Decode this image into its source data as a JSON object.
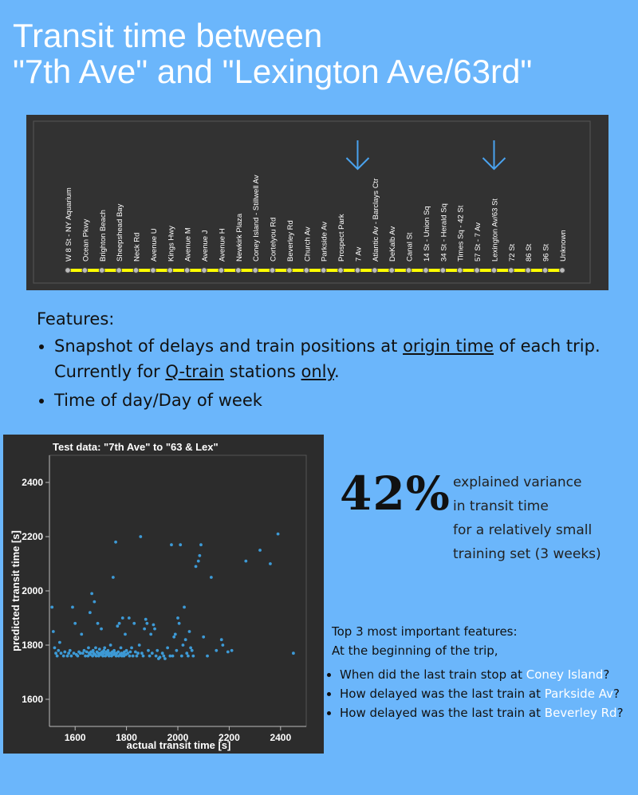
{
  "title": "Transit time between\n\"7th Ave\" and \"Lexington Ave/63rd\"",
  "route": {
    "stations": [
      "W 8 St - NY Aquarium",
      "Ocean Pkwy",
      "Brighton Beach",
      "Sheepshead Bay",
      "Neck Rd",
      "Avenue U",
      "Kings Hwy",
      "Avenue M",
      "Avenue J",
      "Avenue H",
      "Newkirk Plaza",
      "Coney Island - Stillwell Av",
      "Cortelyou Rd",
      "Beverley Rd",
      "Church Av",
      "Parkside Av",
      "Prospect Park",
      "7 Av",
      "Atlantic Av - Barclays Ctr",
      "DeKalb Av",
      "Canal St",
      "14 St - Union Sq",
      "34 St - Herald Sq",
      "Times Sq - 42 St",
      "57 St - 7 Av",
      "Lexington Av/63 St",
      "72 St",
      "86 St",
      "96 St",
      "Unknown"
    ],
    "origin_index": 17,
    "destination_index": 25,
    "line_color": "#ffff00"
  },
  "features": {
    "heading": "Features:",
    "bullet1": {
      "p1": "Snapshot of delays and train positions at ",
      "u1": "origin time",
      "p2": " of each trip. Currently for ",
      "u2": "Q-train",
      "p3": " stations ",
      "u3": "only",
      "p4": "."
    },
    "bullet2": " Time of day/Day of week"
  },
  "chart_data": {
    "type": "scatter",
    "title": "Test data: \"7th Ave\" to \"63 & Lex\"",
    "xlabel": "actual transit time [s]",
    "ylabel": "predicted transit time [s]",
    "xlim": [
      1500,
      2500
    ],
    "ylim": [
      1500,
      2500
    ],
    "xticks": [
      1600,
      1800,
      2000,
      2200,
      2400
    ],
    "yticks": [
      1600,
      1800,
      2000,
      2200,
      2400
    ],
    "point_color": "#3d9ad6",
    "background": "#2c2c2c",
    "points": [
      [
        1510,
        1940
      ],
      [
        1515,
        1850
      ],
      [
        1520,
        1790
      ],
      [
        1525,
        1770
      ],
      [
        1530,
        1760
      ],
      [
        1535,
        1780
      ],
      [
        1540,
        1810
      ],
      [
        1545,
        1770
      ],
      [
        1555,
        1760
      ],
      [
        1560,
        1775
      ],
      [
        1570,
        1760
      ],
      [
        1575,
        1770
      ],
      [
        1580,
        1780
      ],
      [
        1585,
        1760
      ],
      [
        1590,
        1940
      ],
      [
        1595,
        1770
      ],
      [
        1600,
        1880
      ],
      [
        1605,
        1765
      ],
      [
        1610,
        1760
      ],
      [
        1615,
        1775
      ],
      [
        1620,
        1770
      ],
      [
        1625,
        1840
      ],
      [
        1630,
        1770
      ],
      [
        1635,
        1780
      ],
      [
        1640,
        1760
      ],
      [
        1645,
        1775
      ],
      [
        1650,
        1760
      ],
      [
        1652,
        1790
      ],
      [
        1655,
        1770
      ],
      [
        1658,
        1920
      ],
      [
        1660,
        1765
      ],
      [
        1662,
        1775
      ],
      [
        1665,
        1990
      ],
      [
        1668,
        1760
      ],
      [
        1670,
        1780
      ],
      [
        1672,
        1770
      ],
      [
        1675,
        1960
      ],
      [
        1678,
        1765
      ],
      [
        1680,
        1790
      ],
      [
        1682,
        1760
      ],
      [
        1685,
        1775
      ],
      [
        1688,
        1880
      ],
      [
        1690,
        1770
      ],
      [
        1692,
        1760
      ],
      [
        1695,
        1785
      ],
      [
        1698,
        1770
      ],
      [
        1700,
        1765
      ],
      [
        1702,
        1860
      ],
      [
        1705,
        1775
      ],
      [
        1708,
        1760
      ],
      [
        1710,
        1770
      ],
      [
        1712,
        1780
      ],
      [
        1715,
        1790
      ],
      [
        1718,
        1760
      ],
      [
        1720,
        1770
      ],
      [
        1722,
        1775
      ],
      [
        1725,
        1765
      ],
      [
        1728,
        1780
      ],
      [
        1730,
        1770
      ],
      [
        1732,
        1760
      ],
      [
        1735,
        1770
      ],
      [
        1738,
        1800
      ],
      [
        1740,
        1770
      ],
      [
        1742,
        1760
      ],
      [
        1745,
        1775
      ],
      [
        1748,
        2050
      ],
      [
        1750,
        1765
      ],
      [
        1752,
        1780
      ],
      [
        1755,
        1770
      ],
      [
        1758,
        2180
      ],
      [
        1760,
        1760
      ],
      [
        1762,
        1770
      ],
      [
        1765,
        1870
      ],
      [
        1768,
        1775
      ],
      [
        1770,
        1760
      ],
      [
        1772,
        1880
      ],
      [
        1775,
        1765
      ],
      [
        1778,
        1790
      ],
      [
        1780,
        1770
      ],
      [
        1782,
        1760
      ],
      [
        1785,
        1900
      ],
      [
        1788,
        1770
      ],
      [
        1790,
        1760
      ],
      [
        1792,
        1775
      ],
      [
        1795,
        1840
      ],
      [
        1798,
        1765
      ],
      [
        1800,
        1780
      ],
      [
        1805,
        1770
      ],
      [
        1810,
        1900
      ],
      [
        1812,
        1760
      ],
      [
        1815,
        1775
      ],
      [
        1820,
        1790
      ],
      [
        1825,
        1760
      ],
      [
        1830,
        1880
      ],
      [
        1835,
        1775
      ],
      [
        1840,
        1760
      ],
      [
        1845,
        1770
      ],
      [
        1850,
        1800
      ],
      [
        1855,
        2200
      ],
      [
        1860,
        1770
      ],
      [
        1865,
        1760
      ],
      [
        1870,
        1860
      ],
      [
        1875,
        1895
      ],
      [
        1880,
        1880
      ],
      [
        1885,
        1780
      ],
      [
        1890,
        1760
      ],
      [
        1895,
        1840
      ],
      [
        1900,
        1770
      ],
      [
        1905,
        1875
      ],
      [
        1910,
        1860
      ],
      [
        1915,
        1760
      ],
      [
        1920,
        1780
      ],
      [
        1925,
        1750
      ],
      [
        1930,
        1755
      ],
      [
        1940,
        1770
      ],
      [
        1945,
        1760
      ],
      [
        1950,
        1750
      ],
      [
        1960,
        1790
      ],
      [
        1970,
        1760
      ],
      [
        1975,
        2170
      ],
      [
        1980,
        1760
      ],
      [
        1985,
        1830
      ],
      [
        1990,
        1840
      ],
      [
        1995,
        1780
      ],
      [
        2000,
        1900
      ],
      [
        2005,
        1880
      ],
      [
        2010,
        2170
      ],
      [
        2015,
        1760
      ],
      [
        2020,
        1800
      ],
      [
        2025,
        1940
      ],
      [
        2030,
        1820
      ],
      [
        2035,
        1770
      ],
      [
        2040,
        1760
      ],
      [
        2045,
        1850
      ],
      [
        2050,
        1790
      ],
      [
        2055,
        1780
      ],
      [
        2060,
        1760
      ],
      [
        2070,
        2090
      ],
      [
        2080,
        2110
      ],
      [
        2085,
        2130
      ],
      [
        2090,
        2170
      ],
      [
        2100,
        1830
      ],
      [
        2115,
        1760
      ],
      [
        2130,
        2050
      ],
      [
        2150,
        1780
      ],
      [
        2170,
        1820
      ],
      [
        2175,
        1800
      ],
      [
        2195,
        1775
      ],
      [
        2210,
        1780
      ],
      [
        2265,
        2110
      ],
      [
        2320,
        2150
      ],
      [
        2360,
        2100
      ],
      [
        2390,
        2210
      ],
      [
        2450,
        1770
      ]
    ]
  },
  "stats": {
    "percent": "42%",
    "line1": "explained variance",
    "line2": "in transit time",
    "line3": "for a relatively small",
    "line4": "training set (3 weeks)"
  },
  "top_features": {
    "heading": "Top 3 most important features:",
    "subheading": "At the beginning of the trip,",
    "items": [
      {
        "before": "When did the last train stop at ",
        "highlight": "Coney Island",
        "after": "?"
      },
      {
        "before": "How delayed was the last train at ",
        "highlight": "Parkside Av",
        "after": "?"
      },
      {
        "before": "How delayed was the last train at ",
        "highlight": "Beverley Rd",
        "after": "?"
      }
    ]
  }
}
